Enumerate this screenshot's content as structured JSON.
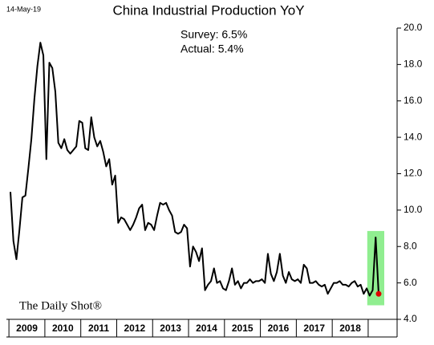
{
  "date_stamp": "14-May-19",
  "chart_data": {
    "type": "line",
    "title": "China Industrial Production YoY",
    "annotations": [
      "Survey: 6.5%",
      "Actual:  5.4%"
    ],
    "source": "The Daily Shot®",
    "categories": [
      null,
      null,
      null,
      null,
      null,
      "2009",
      null,
      null,
      null,
      null,
      null,
      null,
      null,
      null,
      null,
      null,
      null,
      "2010",
      null,
      null,
      null,
      null,
      null,
      null,
      null,
      null,
      null,
      null,
      null,
      "2011",
      null,
      null,
      null,
      null,
      null,
      null,
      null,
      null,
      null,
      null,
      null,
      "2012",
      null,
      null,
      null,
      null,
      null,
      null,
      null,
      null,
      null,
      null,
      null,
      "2013",
      null,
      null,
      null,
      null,
      null,
      null,
      null,
      null,
      null,
      null,
      null,
      "2014",
      null,
      null,
      null,
      null,
      null,
      null,
      null,
      null,
      null,
      null,
      null,
      "2015",
      null,
      null,
      null,
      null,
      null,
      null,
      null,
      null,
      null,
      null,
      null,
      "2016",
      null,
      null,
      null,
      null,
      null,
      null,
      null,
      null,
      null,
      null,
      null,
      "2017",
      null,
      null,
      null,
      null,
      null,
      null,
      null,
      null,
      null,
      null,
      null,
      "2018",
      null,
      null,
      null,
      null,
      null,
      null,
      null,
      null,
      null,
      null
    ],
    "series": [
      {
        "name": "China Industrial Production YoY",
        "color": "#000000",
        "values": [
          11.0,
          8.3,
          7.3,
          8.9,
          10.7,
          10.8,
          12.3,
          13.9,
          16.1,
          17.9,
          19.2,
          18.5,
          12.8,
          18.1,
          17.8,
          16.5,
          13.7,
          13.4,
          13.9,
          13.3,
          13.1,
          13.3,
          13.5,
          14.9,
          14.8,
          13.4,
          13.3,
          15.1,
          14.0,
          13.5,
          13.8,
          13.2,
          12.4,
          12.8,
          11.4,
          11.9,
          9.3,
          9.6,
          9.5,
          9.2,
          8.9,
          9.2,
          9.6,
          10.1,
          10.3,
          8.9,
          9.3,
          9.2,
          8.9,
          9.7,
          10.4,
          10.3,
          10.4,
          10.0,
          9.7,
          8.8,
          8.7,
          8.8,
          9.2,
          9.0,
          6.9,
          8.0,
          7.7,
          7.2,
          7.9,
          5.6,
          5.9,
          6.1,
          6.8,
          6.0,
          6.1,
          5.7,
          5.6,
          6.1,
          6.8,
          5.9,
          6.1,
          5.7,
          6.0,
          6.0,
          6.2,
          6.0,
          6.1,
          6.1,
          6.2,
          6.0,
          7.6,
          6.5,
          6.1,
          6.6,
          7.6,
          6.4,
          6.0,
          6.6,
          6.2,
          6.1,
          6.2,
          6.0,
          7.0,
          6.8,
          6.0,
          6.0,
          6.1,
          5.9,
          5.8,
          5.9,
          5.4,
          5.7,
          6.0,
          6.0,
          6.1,
          5.9,
          5.9,
          5.8,
          6.0,
          6.1,
          5.8,
          5.9,
          5.4,
          5.7,
          5.3,
          5.6,
          8.5,
          5.4
        ]
      }
    ],
    "highlight_color": "#90ee90",
    "last_point_color": "#e00000",
    "ylim": [
      4,
      20
    ],
    "yticks": [
      {
        "value": 4,
        "label": "4.0"
      },
      {
        "value": 6,
        "label": "6.0"
      },
      {
        "value": 8,
        "label": "8.0"
      },
      {
        "value": 10,
        "label": "10.0"
      },
      {
        "value": 12,
        "label": "12.0"
      },
      {
        "value": 14,
        "label": "14.0"
      },
      {
        "value": 16,
        "label": "16.0"
      },
      {
        "value": 18,
        "label": "18.0"
      },
      {
        "value": 20,
        "label": "20.0"
      }
    ]
  }
}
